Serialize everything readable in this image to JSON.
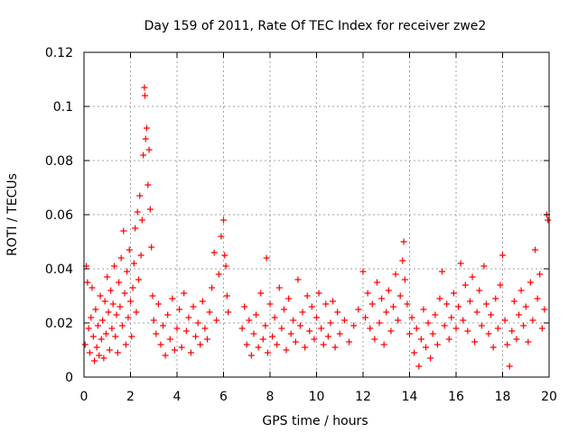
{
  "chart_data": {
    "type": "scatter",
    "title": "Day 159 of 2011, Rate Of TEC Index for receiver zwe2",
    "xlabel": "GPS time / hours",
    "ylabel": "ROTI / TECUs",
    "xlim": [
      0,
      20
    ],
    "ylim": [
      0,
      0.12
    ],
    "x_ticks": [
      0,
      2,
      4,
      6,
      8,
      10,
      12,
      14,
      16,
      18,
      20
    ],
    "x_tick_labels": [
      "0",
      "2",
      "4",
      "6",
      "8",
      "10",
      "12",
      "14",
      "16",
      "18",
      "20"
    ],
    "y_ticks": [
      0,
      0.02,
      0.04,
      0.06,
      0.08,
      0.1,
      0.12
    ],
    "y_tick_labels": [
      "0",
      "0.02",
      "0.04",
      "0.06",
      "0.08",
      "0.1",
      "0.12"
    ],
    "grid": true,
    "marker": "+",
    "series": [
      {
        "name": "ROTI",
        "color": "#ff0000",
        "points": [
          [
            0.05,
            0.012
          ],
          [
            0.1,
            0.041
          ],
          [
            0.15,
            0.035
          ],
          [
            0.2,
            0.018
          ],
          [
            0.25,
            0.009
          ],
          [
            0.3,
            0.022
          ],
          [
            0.35,
            0.033
          ],
          [
            0.4,
            0.015
          ],
          [
            0.45,
            0.006
          ],
          [
            0.5,
            0.025
          ],
          [
            0.55,
            0.011
          ],
          [
            0.6,
            0.019
          ],
          [
            0.65,
            0.008
          ],
          [
            0.7,
            0.03
          ],
          [
            0.75,
            0.014
          ],
          [
            0.8,
            0.021
          ],
          [
            0.85,
            0.007
          ],
          [
            0.9,
            0.028
          ],
          [
            0.95,
            0.016
          ],
          [
            1.0,
            0.037
          ],
          [
            1.05,
            0.024
          ],
          [
            1.1,
            0.01
          ],
          [
            1.15,
            0.032
          ],
          [
            1.2,
            0.018
          ],
          [
            1.25,
            0.027
          ],
          [
            1.3,
            0.041
          ],
          [
            1.35,
            0.015
          ],
          [
            1.4,
            0.023
          ],
          [
            1.45,
            0.009
          ],
          [
            1.5,
            0.035
          ],
          [
            1.55,
            0.026
          ],
          [
            1.6,
            0.044
          ],
          [
            1.65,
            0.019
          ],
          [
            1.7,
            0.054
          ],
          [
            1.75,
            0.031
          ],
          [
            1.8,
            0.012
          ],
          [
            1.85,
            0.039
          ],
          [
            1.9,
            0.022
          ],
          [
            1.95,
            0.047
          ],
          [
            2.0,
            0.028
          ],
          [
            2.05,
            0.015
          ],
          [
            2.1,
            0.033
          ],
          [
            2.15,
            0.042
          ],
          [
            2.2,
            0.055
          ],
          [
            2.25,
            0.024
          ],
          [
            2.3,
            0.061
          ],
          [
            2.35,
            0.036
          ],
          [
            2.4,
            0.067
          ],
          [
            2.45,
            0.045
          ],
          [
            2.5,
            0.058
          ],
          [
            2.55,
            0.082
          ],
          [
            2.6,
            0.107
          ],
          [
            2.62,
            0.104
          ],
          [
            2.65,
            0.088
          ],
          [
            2.7,
            0.092
          ],
          [
            2.75,
            0.071
          ],
          [
            2.8,
            0.084
          ],
          [
            2.85,
            0.062
          ],
          [
            2.9,
            0.048
          ],
          [
            2.95,
            0.03
          ],
          [
            3.0,
            0.021
          ],
          [
            3.1,
            0.016
          ],
          [
            3.2,
            0.027
          ],
          [
            3.3,
            0.012
          ],
          [
            3.4,
            0.019
          ],
          [
            3.5,
            0.008
          ],
          [
            3.6,
            0.023
          ],
          [
            3.7,
            0.014
          ],
          [
            3.8,
            0.029
          ],
          [
            3.9,
            0.01
          ],
          [
            4.0,
            0.018
          ],
          [
            4.1,
            0.025
          ],
          [
            4.2,
            0.011
          ],
          [
            4.3,
            0.031
          ],
          [
            4.4,
            0.017
          ],
          [
            4.5,
            0.022
          ],
          [
            4.6,
            0.009
          ],
          [
            4.7,
            0.026
          ],
          [
            4.8,
            0.015
          ],
          [
            4.9,
            0.02
          ],
          [
            5.0,
            0.012
          ],
          [
            5.1,
            0.028
          ],
          [
            5.2,
            0.018
          ],
          [
            5.3,
            0.014
          ],
          [
            5.4,
            0.024
          ],
          [
            5.5,
            0.033
          ],
          [
            5.6,
            0.046
          ],
          [
            5.7,
            0.021
          ],
          [
            5.8,
            0.038
          ],
          [
            5.9,
            0.052
          ],
          [
            6.0,
            0.058
          ],
          [
            6.05,
            0.045
          ],
          [
            6.1,
            0.041
          ],
          [
            6.15,
            0.03
          ],
          [
            6.2,
            0.024
          ],
          [
            6.8,
            0.018
          ],
          [
            6.9,
            0.026
          ],
          [
            7.0,
            0.012
          ],
          [
            7.1,
            0.021
          ],
          [
            7.2,
            0.008
          ],
          [
            7.3,
            0.016
          ],
          [
            7.4,
            0.023
          ],
          [
            7.5,
            0.011
          ],
          [
            7.6,
            0.031
          ],
          [
            7.7,
            0.014
          ],
          [
            7.8,
            0.019
          ],
          [
            7.85,
            0.044
          ],
          [
            7.9,
            0.009
          ],
          [
            8.0,
            0.027
          ],
          [
            8.1,
            0.015
          ],
          [
            8.2,
            0.022
          ],
          [
            8.3,
            0.012
          ],
          [
            8.4,
            0.033
          ],
          [
            8.5,
            0.018
          ],
          [
            8.6,
            0.025
          ],
          [
            8.7,
            0.01
          ],
          [
            8.8,
            0.029
          ],
          [
            8.9,
            0.016
          ],
          [
            9.0,
            0.021
          ],
          [
            9.1,
            0.013
          ],
          [
            9.2,
            0.036
          ],
          [
            9.3,
            0.019
          ],
          [
            9.4,
            0.024
          ],
          [
            9.5,
            0.011
          ],
          [
            9.6,
            0.03
          ],
          [
            9.7,
            0.017
          ],
          [
            9.8,
            0.026
          ],
          [
            9.9,
            0.014
          ],
          [
            10.0,
            0.022
          ],
          [
            10.1,
            0.031
          ],
          [
            10.2,
            0.018
          ],
          [
            10.3,
            0.012
          ],
          [
            10.4,
            0.027
          ],
          [
            10.5,
            0.015
          ],
          [
            10.6,
            0.02
          ],
          [
            10.7,
            0.028
          ],
          [
            10.8,
            0.011
          ],
          [
            10.9,
            0.024
          ],
          [
            11.0,
            0.016
          ],
          [
            11.2,
            0.021
          ],
          [
            11.4,
            0.013
          ],
          [
            11.6,
            0.019
          ],
          [
            11.8,
            0.025
          ],
          [
            12.0,
            0.039
          ],
          [
            12.1,
            0.022
          ],
          [
            12.2,
            0.031
          ],
          [
            12.3,
            0.018
          ],
          [
            12.4,
            0.027
          ],
          [
            12.5,
            0.014
          ],
          [
            12.6,
            0.035
          ],
          [
            12.7,
            0.02
          ],
          [
            12.8,
            0.029
          ],
          [
            12.9,
            0.012
          ],
          [
            13.0,
            0.024
          ],
          [
            13.1,
            0.032
          ],
          [
            13.2,
            0.017
          ],
          [
            13.3,
            0.026
          ],
          [
            13.4,
            0.038
          ],
          [
            13.5,
            0.021
          ],
          [
            13.6,
            0.03
          ],
          [
            13.7,
            0.043
          ],
          [
            13.75,
            0.05
          ],
          [
            13.8,
            0.036
          ],
          [
            13.9,
            0.027
          ],
          [
            14.0,
            0.016
          ],
          [
            14.1,
            0.022
          ],
          [
            14.2,
            0.009
          ],
          [
            14.3,
            0.018
          ],
          [
            14.4,
            0.004
          ],
          [
            14.5,
            0.014
          ],
          [
            14.6,
            0.025
          ],
          [
            14.7,
            0.011
          ],
          [
            14.8,
            0.02
          ],
          [
            14.9,
            0.007
          ],
          [
            15.0,
            0.016
          ],
          [
            15.1,
            0.023
          ],
          [
            15.2,
            0.012
          ],
          [
            15.3,
            0.029
          ],
          [
            15.4,
            0.039
          ],
          [
            15.5,
            0.019
          ],
          [
            15.6,
            0.027
          ],
          [
            15.7,
            0.014
          ],
          [
            15.8,
            0.022
          ],
          [
            15.9,
            0.031
          ],
          [
            16.0,
            0.018
          ],
          [
            16.1,
            0.026
          ],
          [
            16.2,
            0.042
          ],
          [
            16.3,
            0.021
          ],
          [
            16.4,
            0.034
          ],
          [
            16.5,
            0.017
          ],
          [
            16.6,
            0.028
          ],
          [
            16.7,
            0.037
          ],
          [
            16.8,
            0.013
          ],
          [
            16.9,
            0.024
          ],
          [
            17.0,
            0.032
          ],
          [
            17.1,
            0.019
          ],
          [
            17.2,
            0.041
          ],
          [
            17.3,
            0.027
          ],
          [
            17.4,
            0.016
          ],
          [
            17.5,
            0.023
          ],
          [
            17.6,
            0.011
          ],
          [
            17.7,
            0.029
          ],
          [
            17.8,
            0.018
          ],
          [
            17.9,
            0.034
          ],
          [
            18.0,
            0.045
          ],
          [
            18.1,
            0.021
          ],
          [
            18.2,
            0.012
          ],
          [
            18.3,
            0.004
          ],
          [
            18.4,
            0.017
          ],
          [
            18.5,
            0.028
          ],
          [
            18.6,
            0.014
          ],
          [
            18.7,
            0.023
          ],
          [
            18.8,
            0.032
          ],
          [
            18.9,
            0.019
          ],
          [
            19.0,
            0.026
          ],
          [
            19.1,
            0.013
          ],
          [
            19.2,
            0.035
          ],
          [
            19.3,
            0.021
          ],
          [
            19.4,
            0.047
          ],
          [
            19.5,
            0.029
          ],
          [
            19.6,
            0.038
          ],
          [
            19.7,
            0.018
          ],
          [
            19.8,
            0.025
          ],
          [
            19.9,
            0.06
          ],
          [
            19.95,
            0.058
          ]
        ]
      }
    ]
  }
}
